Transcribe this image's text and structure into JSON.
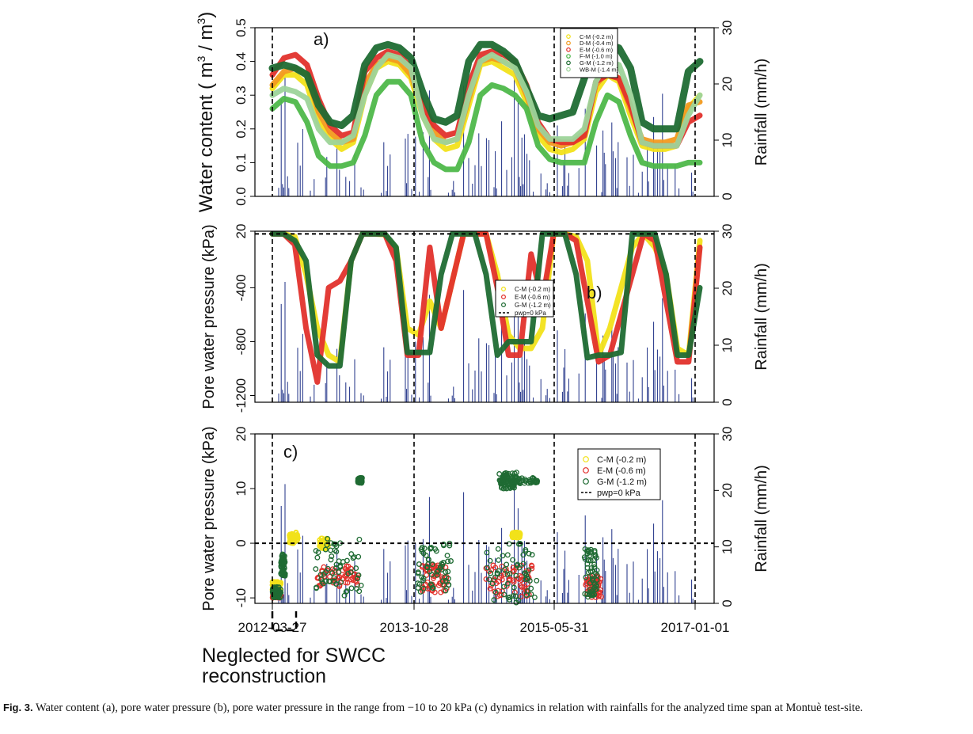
{
  "caption": {
    "fig_label": "Fig. 3.",
    "text": "Water content (a), pore water pressure (b), pore water pressure in the range from −10 to 20 kPa (c) dynamics in relation with rainfalls for the analyzed time span at Montuè test-site."
  },
  "annotation": {
    "bracket_label_line1": "Neglected for SWCC",
    "bracket_label_line2": "reconstruction"
  },
  "x_axis": {
    "ticks": [
      "2012-03-27",
      "2013-10-28",
      "2015-05-31",
      "2017-01-01"
    ],
    "ref_lines": [
      "2012-03-27",
      "2013-10-28",
      "2015-05-31",
      "2017-01-01"
    ]
  },
  "chart_data": [
    {
      "id": "a",
      "type": "line",
      "panel_label": "a)",
      "ylabel_left": "Water content ( m³ / m³)",
      "ylabel_left_parts": [
        "Water content ( m",
        "3",
        " / m",
        "3",
        ")"
      ],
      "ylabel_right": "Rainfall (mm/h)",
      "ylim": [
        0.0,
        0.5
      ],
      "yticks": [
        0.0,
        0.1,
        0.2,
        0.3,
        0.4,
        0.5
      ],
      "ytick_labels": [
        "0.0",
        "0.1",
        "0.2",
        "0.3",
        "0.4",
        "0.5"
      ],
      "rain_ylim": [
        0,
        30
      ],
      "rain_ticks": [
        0,
        10,
        20,
        30
      ],
      "x_index_start": "2012-03-27",
      "series": [
        {
          "name": "C-M (-0.2 m)",
          "color": "#f2e21a",
          "values": [
            0.32,
            0.36,
            0.36,
            0.33,
            0.22,
            0.17,
            0.14,
            0.16,
            0.3,
            0.38,
            0.4,
            0.39,
            0.35,
            0.24,
            0.17,
            0.14,
            0.15,
            0.27,
            0.39,
            0.4,
            0.38,
            0.36,
            0.28,
            0.18,
            0.14,
            0.13,
            0.14,
            0.17,
            0.31,
            0.36,
            0.34,
            0.24,
            0.15,
            0.14,
            0.14,
            0.15,
            0.26,
            0.3
          ]
        },
        {
          "name": "D-M (-0.4 m)",
          "color": "#f29a1f",
          "values": [
            0.33,
            0.37,
            0.38,
            0.36,
            0.25,
            0.19,
            0.16,
            0.17,
            0.33,
            0.39,
            0.41,
            0.4,
            0.36,
            0.26,
            0.19,
            0.16,
            0.17,
            0.29,
            0.4,
            0.41,
            0.4,
            0.38,
            0.3,
            0.2,
            0.16,
            0.15,
            0.16,
            0.19,
            0.33,
            0.37,
            0.35,
            0.26,
            0.17,
            0.16,
            0.16,
            0.17,
            0.27,
            0.28
          ]
        },
        {
          "name": "E-M (-0.6 m)",
          "color": "#e2312c",
          "values": [
            0.36,
            0.41,
            0.42,
            0.39,
            0.29,
            0.21,
            0.18,
            0.19,
            0.37,
            0.41,
            0.43,
            0.42,
            0.38,
            0.27,
            0.21,
            0.18,
            0.19,
            0.33,
            0.42,
            0.43,
            0.42,
            0.4,
            0.33,
            0.22,
            0.17,
            0.16,
            0.16,
            0.18,
            0.34,
            0.36,
            0.35,
            0.27,
            0.16,
            0.15,
            0.15,
            0.15,
            0.22,
            0.24
          ]
        },
        {
          "name": "F-M (-1.0 m)",
          "color": "#4eb84a",
          "values": [
            0.26,
            0.29,
            0.28,
            0.22,
            0.12,
            0.09,
            0.09,
            0.1,
            0.18,
            0.3,
            0.34,
            0.34,
            0.3,
            0.16,
            0.1,
            0.08,
            0.08,
            0.16,
            0.3,
            0.33,
            0.32,
            0.3,
            0.26,
            0.15,
            0.11,
            0.1,
            0.1,
            0.1,
            0.22,
            0.3,
            0.28,
            0.18,
            0.1,
            0.09,
            0.09,
            0.09,
            0.1,
            0.1
          ]
        },
        {
          "name": "G-M (-1.2 m)",
          "color": "#1f6b33",
          "values": [
            0.38,
            0.39,
            0.38,
            0.36,
            0.27,
            0.22,
            0.21,
            0.24,
            0.39,
            0.44,
            0.45,
            0.44,
            0.41,
            0.31,
            0.23,
            0.22,
            0.24,
            0.4,
            0.45,
            0.45,
            0.43,
            0.4,
            0.32,
            0.24,
            0.23,
            0.24,
            0.25,
            0.35,
            0.44,
            0.45,
            0.44,
            0.38,
            0.22,
            0.2,
            0.2,
            0.2,
            0.37,
            0.4
          ]
        },
        {
          "name": "WB-M (-1.4 m)",
          "color": "#9dd49a",
          "values": [
            0.3,
            0.32,
            0.31,
            0.29,
            0.2,
            0.16,
            0.16,
            0.18,
            0.3,
            0.38,
            0.42,
            0.41,
            0.38,
            0.24,
            0.17,
            0.16,
            0.17,
            0.3,
            0.4,
            0.42,
            0.4,
            0.38,
            0.31,
            0.21,
            0.17,
            0.17,
            0.17,
            0.2,
            0.34,
            0.4,
            0.39,
            0.3,
            0.16,
            0.15,
            0.15,
            0.15,
            0.24,
            0.3
          ]
        }
      ]
    },
    {
      "id": "b",
      "type": "line",
      "panel_label": "b)",
      "ylabel_left": "Pore water pressure (kPa)",
      "ylabel_right": "Rainfall (mm/h)",
      "ylim": [
        -1250,
        20
      ],
      "yticks": [
        20,
        -400,
        -800,
        -1200
      ],
      "ytick_labels": [
        "20",
        "-400",
        "-800",
        "-1200"
      ],
      "rain_ylim": [
        0,
        30
      ],
      "rain_ticks": [
        0,
        10,
        20,
        30
      ],
      "series": [
        {
          "name": "C-M (-0.2 m)",
          "color": "#f2e21a",
          "values": [
            0,
            0,
            -20,
            -300,
            -700,
            -900,
            -950,
            -200,
            0,
            0,
            -5,
            -100,
            -700,
            -750,
            -500,
            -700,
            -350,
            0,
            0,
            0,
            -300,
            -750,
            -850,
            -850,
            -700,
            0,
            0,
            -20,
            -200,
            -900,
            -700,
            -400,
            -100,
            0,
            -100,
            -300,
            -850,
            -900,
            -50
          ]
        },
        {
          "name": "E-M (-0.6 m)",
          "color": "#e2312c",
          "values": [
            0,
            0,
            -80,
            -700,
            -1100,
            -400,
            -350,
            -200,
            0,
            0,
            0,
            -200,
            -900,
            -900,
            -100,
            -700,
            -350,
            0,
            0,
            0,
            -400,
            -900,
            -900,
            -150,
            -500,
            0,
            0,
            -50,
            -500,
            -950,
            -900,
            -600,
            -300,
            0,
            -50,
            -500,
            -950,
            -950,
            -100
          ]
        },
        {
          "name": "G-M (-1.2 m)",
          "color": "#1f6b33",
          "values": [
            0,
            0,
            -50,
            -200,
            -900,
            -980,
            -980,
            -200,
            0,
            0,
            0,
            -100,
            -880,
            -880,
            -880,
            -300,
            0,
            0,
            0,
            -300,
            -900,
            -800,
            -800,
            -800,
            0,
            0,
            0,
            -300,
            -920,
            -900,
            -900,
            -880,
            0,
            0,
            0,
            -300,
            -900,
            -900,
            -400
          ]
        },
        {
          "name": "pwp=0 kPa",
          "color": "#000000",
          "dash": true,
          "values": [
            0,
            0
          ]
        }
      ]
    },
    {
      "id": "c",
      "type": "scatter",
      "panel_label": "c)",
      "ylabel_left": "Pore water pressure (kPa)",
      "ylabel_right": "Rainfall (mm/h)",
      "ylim": [
        -11,
        20
      ],
      "yticks": [
        20,
        10,
        0,
        -10
      ],
      "ytick_labels": [
        "20",
        "10",
        "0",
        "-10"
      ],
      "rain_ylim": [
        0,
        30
      ],
      "rain_ticks": [
        0,
        10,
        20,
        30
      ],
      "series": [
        {
          "name": "C-M (-0.2 m)",
          "color": "#f2e21a",
          "segments": [
            [
              0.0,
              0.02,
              -9,
              -7
            ],
            [
              0.04,
              0.06,
              0,
              2
            ],
            [
              0.11,
              0.13,
              -1,
              1
            ],
            [
              0.56,
              0.58,
              1,
              2
            ]
          ]
        },
        {
          "name": "E-M (-0.6 m)",
          "color": "#e2312c",
          "segments": [
            [
              0.0,
              0.02,
              -10,
              -9
            ],
            [
              0.1,
              0.2,
              -8,
              -4
            ],
            [
              0.35,
              0.41,
              -9,
              -4
            ],
            [
              0.5,
              0.61,
              -10,
              -4
            ],
            [
              0.73,
              0.77,
              -10,
              -6
            ]
          ]
        },
        {
          "name": "G-M (-1.2 m)",
          "color": "#1f6b33",
          "segments": [
            [
              0.0,
              0.02,
              -10,
              -8
            ],
            [
              0.02,
              0.03,
              -6,
              -2
            ],
            [
              0.1,
              0.21,
              -10,
              1
            ],
            [
              0.2,
              0.21,
              11,
              12
            ],
            [
              0.34,
              0.42,
              -9,
              0
            ],
            [
              0.5,
              0.62,
              -11,
              0
            ],
            [
              0.53,
              0.58,
              10,
              13
            ],
            [
              0.53,
              0.62,
              11,
              12
            ],
            [
              0.73,
              0.76,
              -10,
              -1
            ]
          ]
        },
        {
          "name": "pwp=0 kPa",
          "color": "#000000",
          "dash": true,
          "values": [
            0,
            0
          ]
        }
      ]
    }
  ]
}
